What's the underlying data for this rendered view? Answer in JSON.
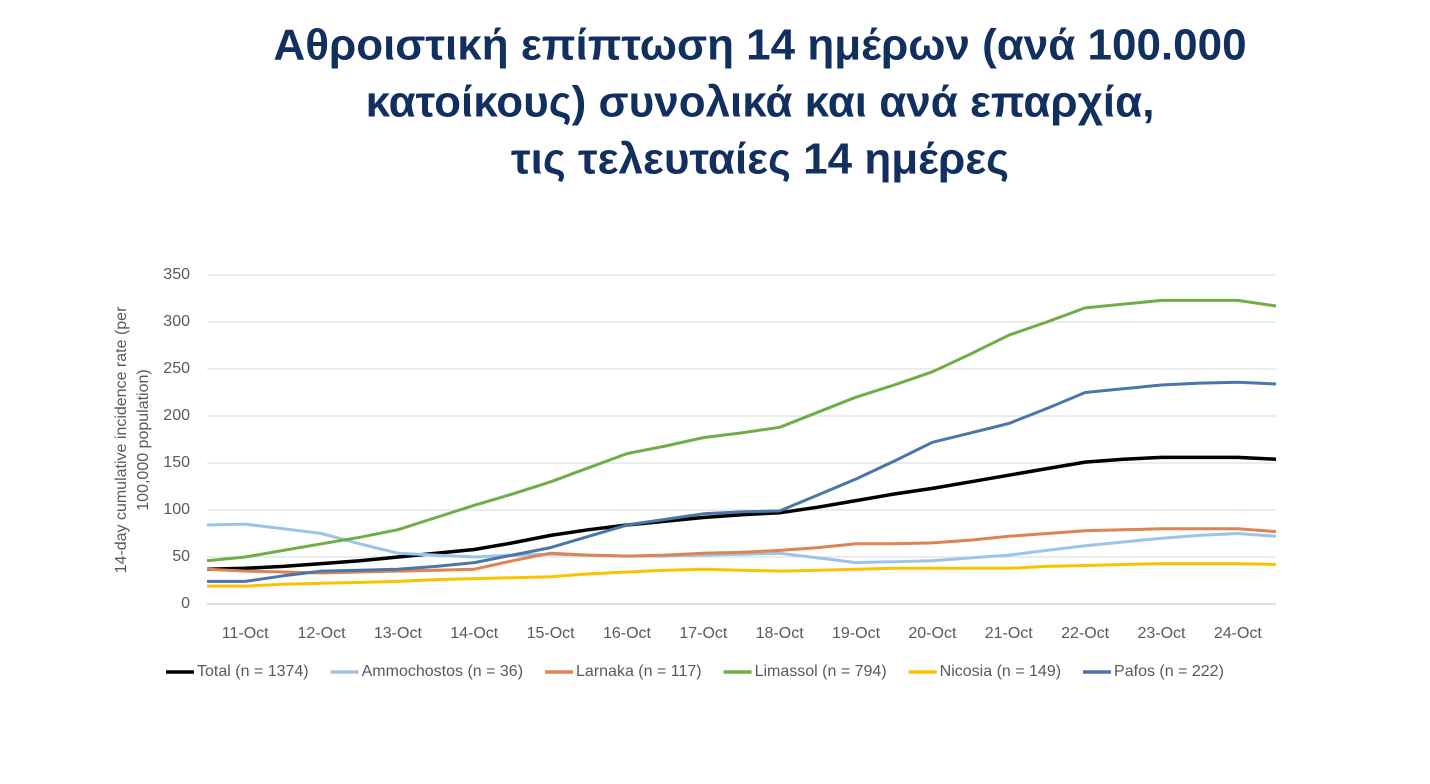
{
  "chart_data": {
    "type": "line",
    "title": [
      "Αθροιστική επίπτωση 14 ημέρων (ανά 100.000",
      "κατοίκους) συνολικά και ανά επαρχία,",
      "τις τελευταίες 14 ημέρες"
    ],
    "y_label": [
      "14-day cumulative incidence rate (per",
      "100,000 population)"
    ],
    "categories": [
      null,
      "11-Oct",
      null,
      "12-Oct",
      null,
      "13-Oct",
      null,
      "14-Oct",
      null,
      "15-Oct",
      null,
      "16-Oct",
      null,
      "17-Oct",
      null,
      "18-Oct",
      null,
      "19-Oct",
      null,
      "20-Oct",
      null,
      "21-Oct",
      null,
      "22-Oct",
      null,
      "23-Oct",
      null,
      "24-Oct",
      null
    ],
    "ylim": [
      0,
      350
    ],
    "yticks": [
      0,
      50,
      100,
      150,
      200,
      250,
      300,
      350
    ],
    "grid": true,
    "legend": "bottom",
    "series": [
      {
        "name": "Total (n = 1374)",
        "color": "#000000",
        "values": [
          37,
          38,
          40,
          43,
          46,
          50,
          54,
          58,
          65,
          73,
          79,
          84,
          88,
          92,
          95,
          97,
          103,
          110,
          117,
          123,
          130,
          137,
          144,
          151,
          154,
          156,
          156,
          156,
          154
        ]
      },
      {
        "name": "Ammochostos (n = 36)",
        "color": "#9dc3e6",
        "values": [
          84,
          85,
          80,
          75,
          64,
          54,
          52,
          50,
          52,
          53,
          52,
          51,
          51,
          52,
          53,
          54,
          49,
          44,
          45,
          46,
          49,
          52,
          57,
          62,
          66,
          70,
          73,
          75,
          72
        ]
      },
      {
        "name": "Larnaka (n = 117)",
        "color": "#dd8452",
        "values": [
          37,
          35,
          34,
          33,
          34,
          35,
          36,
          37,
          46,
          54,
          52,
          51,
          52,
          54,
          55,
          57,
          60,
          64,
          64,
          65,
          68,
          72,
          75,
          78,
          79,
          80,
          80,
          80,
          77
        ]
      },
      {
        "name": "Limassol (n = 794)",
        "color": "#70ad47",
        "values": [
          46,
          50,
          57,
          64,
          71,
          79,
          92,
          105,
          117,
          130,
          145,
          160,
          168,
          177,
          182,
          188,
          204,
          220,
          233,
          247,
          266,
          286,
          300,
          315,
          319,
          323,
          323,
          323,
          317
        ]
      },
      {
        "name": "Nicosia (n = 149)",
        "color": "#ffc000",
        "values": [
          19,
          19,
          21,
          22,
          23,
          24,
          26,
          27,
          28,
          29,
          32,
          34,
          36,
          37,
          36,
          35,
          36,
          37,
          38,
          38,
          38,
          38,
          40,
          41,
          42,
          43,
          43,
          43,
          42
        ]
      },
      {
        "name": "Pafos (n = 222)",
        "color": "#4a76a8",
        "values": [
          24,
          24,
          30,
          35,
          36,
          37,
          40,
          44,
          52,
          60,
          72,
          84,
          90,
          96,
          98,
          99,
          116,
          133,
          152,
          172,
          182,
          192,
          208,
          225,
          229,
          233,
          235,
          236,
          234
        ]
      }
    ]
  }
}
